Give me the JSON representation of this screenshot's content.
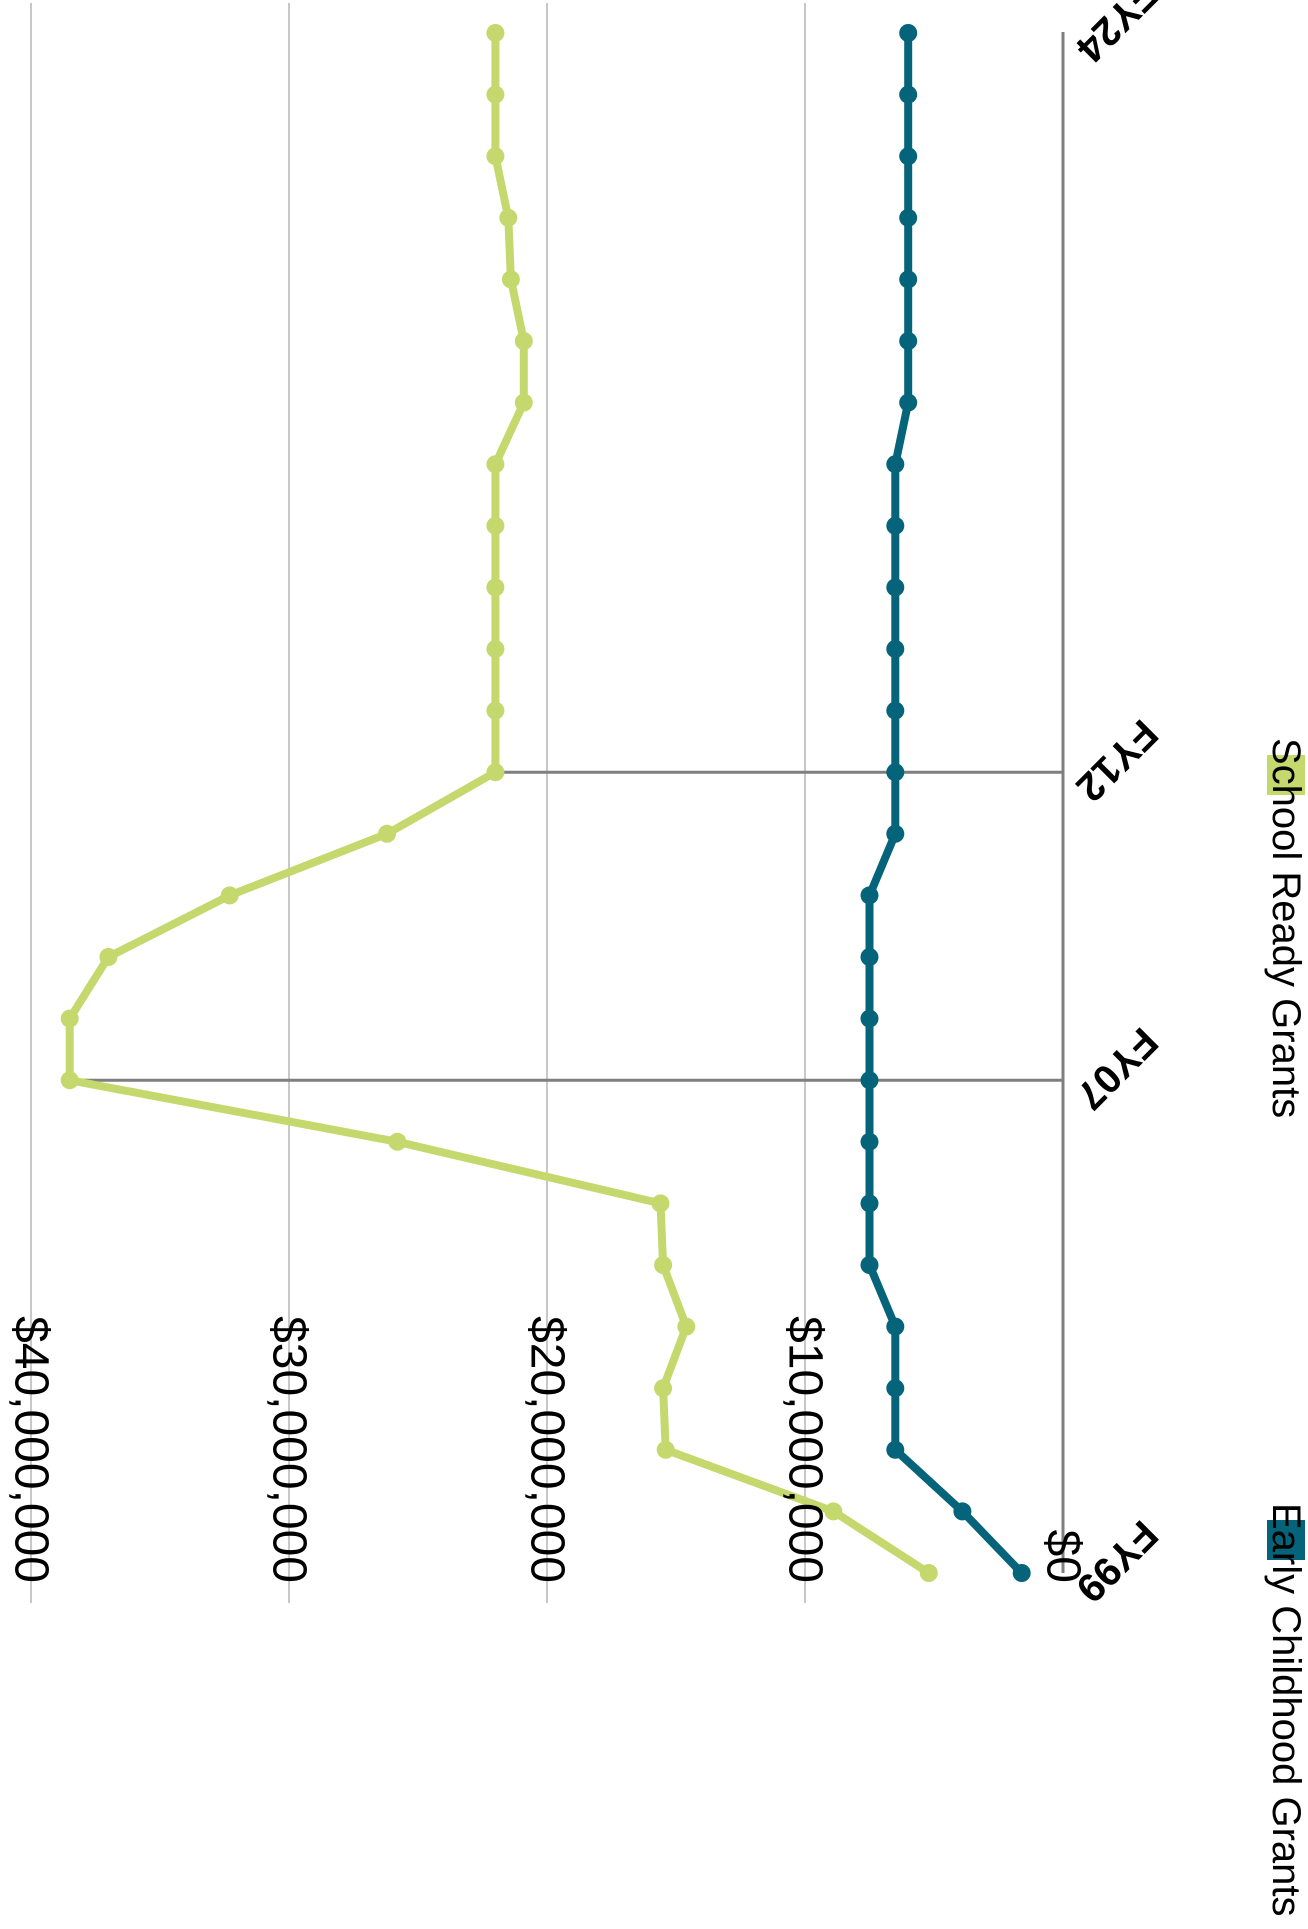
{
  "chart_data": {
    "type": "line",
    "title": "",
    "xlabel": "",
    "ylabel": "",
    "ylim": [
      0,
      40000000
    ],
    "y_ticks": [
      "$0",
      "$10,000,000",
      "$20,000,000",
      "$30,000,000",
      "$40,000,000"
    ],
    "y_tick_values": [
      0,
      10000000,
      20000000,
      30000000,
      40000000
    ],
    "x": [
      "FY99",
      "FY00",
      "FY01",
      "FY02",
      "FY03",
      "FY04",
      "FY05",
      "FY06",
      "FY07",
      "FY08",
      "FY09",
      "FY10",
      "FY11",
      "FY12",
      "FY13",
      "FY14",
      "FY15",
      "FY16",
      "FY17",
      "FY18",
      "FY19",
      "FY20",
      "FY21",
      "FY22",
      "FY23",
      "FY24"
    ],
    "x_tick_labels": [
      "FY99",
      "FY07",
      "FY12",
      "FY24"
    ],
    "marked_periods": [
      "FY07",
      "FY12"
    ],
    "grid": true,
    "orientation": "rotated 90° clockwise",
    "legend_position": "bottom",
    "series": [
      {
        "name": "Early Childhood Grants",
        "color": "#05647a",
        "values": [
          1600000,
          3900000,
          6500000,
          6500000,
          6500000,
          7500000,
          7500000,
          7500000,
          7500000,
          7500000,
          7500000,
          7500000,
          6500000,
          6500000,
          6500000,
          6500000,
          6500000,
          6500000,
          6500000,
          6000000,
          6000000,
          6000000,
          6000000,
          6000000,
          6000000,
          6000000
        ]
      },
      {
        "name": "School Ready Grants",
        "color": "#c5d86d",
        "values": [
          5200000,
          8900000,
          15400000,
          15500000,
          14600000,
          15500000,
          15600000,
          25800000,
          38500000,
          38500000,
          37000000,
          32300000,
          26200000,
          22000000,
          22000000,
          22000000,
          22000000,
          22000000,
          22000000,
          20900000,
          20900000,
          21400000,
          21500000,
          22000000,
          22000000,
          22000000
        ]
      }
    ]
  }
}
